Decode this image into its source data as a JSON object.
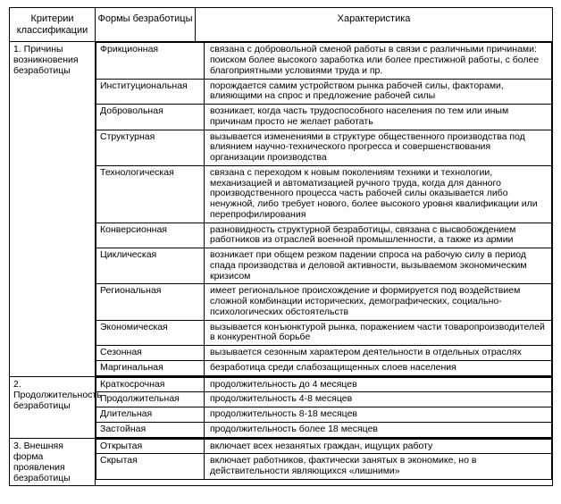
{
  "headers": {
    "col1": "Критерии классификации",
    "col2": "Формы безработицы",
    "col3": "Характеристика"
  },
  "criteria": [
    {
      "label": "1. Причины возникновения безработицы",
      "rows": [
        {
          "form": "Фрикционная",
          "char": "связана с добровольной сменой работы в связи с различными причинами: поиском более высокого заработка или более престижной работы, с более благоприятными условиями труда и пр."
        },
        {
          "form": "Институциональная",
          "char": "порождается самим устройством рынка рабочей силы, факторами, влияющими на спрос и предложение рабочей силы"
        },
        {
          "form": "Добровольная",
          "char": "возникает, когда часть трудоспособного населения по тем или иным причинам просто не желает работать"
        },
        {
          "form": "Структурная",
          "char": "вызывается изменениями в структуре общественного производства под влиянием научно-технического прогресса и совершенствования организации производства"
        },
        {
          "form": "Технологическая",
          "char": "связана с переходом к новым поколениям техники и технологии, механизацией и автоматизацией ручного труда, когда для данного производственного процесса часть рабочей силы оказывается либо ненужной, либо требует нового, более высокого уровня квалификации или перепрофилирования"
        },
        {
          "form": "Конверсионная",
          "char": "разновидность структурной безработицы, связана с высвобождением работников из отраслей военной промышленности, а также из армии"
        },
        {
          "form": "Циклическая",
          "char": "возникает при общем резком падении спроса на рабочую силу в период спада производства и деловой активности, вызываемом экономическим кризисом"
        },
        {
          "form": "Региональная",
          "char": "имеет региональное происхождение и формируется под воздействием сложной комбинации исторических, демографических, социально-психологических обстоятельств"
        },
        {
          "form": "Экономическая",
          "char": "вызывается конъюнктурой рынка, поражением части товаропроизводителей в конкурентной борьбе"
        },
        {
          "form": "Сезонная",
          "char": "вызывается сезонным характером деятельности в отдельных отраслях"
        },
        {
          "form": "Маргинальная",
          "char": "безработица среди слабозащищенных слоев населения"
        }
      ]
    },
    {
      "label": "2. Продолжительность безработицы",
      "rows": [
        {
          "form": "Краткосрочная",
          "char": "продолжительность до 4 месяцев"
        },
        {
          "form": "Продолжительная",
          "char": "продолжительность 4-8 месяцев"
        },
        {
          "form": "Длительная",
          "char": "продолжительность 8-18 месяцев"
        },
        {
          "form": "Застойная",
          "char": "продолжительность более 18 месяцев"
        }
      ]
    },
    {
      "label": "3. Внешняя форма проявления безработицы",
      "rows": [
        {
          "form": "Открытая",
          "char": "включает всех незанятых граждан, ищущих работу"
        },
        {
          "form": "Скрытая",
          "char": "включает работников, фактически занятых в экономике, но в действительности являющихся «лишними»"
        }
      ]
    }
  ]
}
